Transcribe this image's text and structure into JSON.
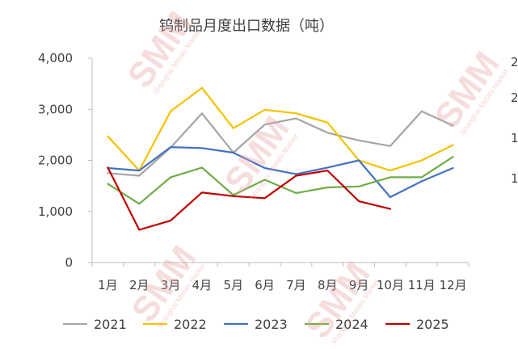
{
  "chart_data": {
    "type": "line",
    "title": "钨制品月度出口数据（吨）",
    "xlabel": "",
    "ylabel": "",
    "categories": [
      "1月",
      "2月",
      "3月",
      "4月",
      "5月",
      "6月",
      "7月",
      "8月",
      "9月",
      "10月",
      "11月",
      "12月"
    ],
    "ylim": [
      0,
      4000
    ],
    "yticks": [
      "4,000",
      "3,000",
      "2,000",
      "1,000",
      "0"
    ],
    "right_axis_partial_labels": [
      "2",
      "2",
      "1",
      "1"
    ],
    "grid": false,
    "legend_position": "bottom",
    "series": [
      {
        "name": "2021",
        "color": "#a5a5a5",
        "values": [
          1750,
          1700,
          2250,
          2920,
          2150,
          2700,
          2820,
          2540,
          2390,
          2280,
          2960,
          2680
        ]
      },
      {
        "name": "2022",
        "color": "#f5c200",
        "values": [
          2470,
          1800,
          2960,
          3420,
          2630,
          2990,
          2920,
          2740,
          2000,
          1800,
          2000,
          2300
        ]
      },
      {
        "name": "2023",
        "color": "#4472c4",
        "values": [
          1850,
          1800,
          2260,
          2240,
          2150,
          1850,
          1730,
          1860,
          2000,
          1280,
          1590,
          1850
        ]
      },
      {
        "name": "2024",
        "color": "#70ad47",
        "values": [
          1540,
          1150,
          1670,
          1860,
          1320,
          1620,
          1360,
          1470,
          1490,
          1670,
          1670,
          2070
        ]
      },
      {
        "name": "2025",
        "color": "#c00000",
        "values": [
          1860,
          640,
          820,
          1370,
          1300,
          1260,
          1700,
          1800,
          1200,
          1050,
          null,
          null
        ]
      }
    ]
  },
  "watermark": {
    "text": "SMM",
    "subtext": "Shanghai Metals Market"
  }
}
